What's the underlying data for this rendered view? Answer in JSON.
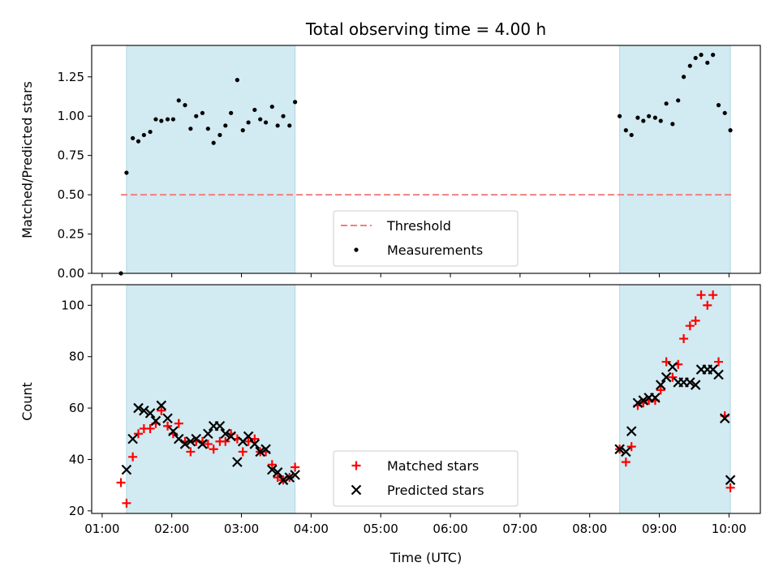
{
  "chart_data": {
    "type": "scatter",
    "title": "Total observing time = 4.00 h",
    "xlabel": "Time (UTC)",
    "x_ticks": [
      "01:00",
      "02:00",
      "03:00",
      "04:00",
      "05:00",
      "06:00",
      "07:00",
      "08:00",
      "09:00",
      "10:00"
    ],
    "x_range_hours": [
      0.85,
      10.45
    ],
    "shaded_intervals": [
      [
        1.35,
        3.77
      ],
      [
        8.43,
        10.02
      ]
    ],
    "shade_color": "#add8e6",
    "panels": [
      {
        "ylabel": "Matched/Predicted stars",
        "ylim": [
          0,
          1.45
        ],
        "y_ticks": [
          "0.00",
          "0.25",
          "0.50",
          "0.75",
          "1.00",
          "1.25"
        ],
        "y_tick_values": [
          0,
          0.25,
          0.5,
          0.75,
          1.0,
          1.25
        ],
        "threshold": {
          "name": "Threshold",
          "value": 0.5,
          "x_range": [
            1.27,
            10.05
          ],
          "color": "#f08080"
        },
        "legend": {
          "placement": "lower-center",
          "entries": [
            "Threshold",
            "Measurements"
          ]
        },
        "series": [
          {
            "name": "Measurements",
            "marker": "dot",
            "color": "#000000",
            "points": [
              [
                1.27,
                0.0
              ],
              [
                1.35,
                0.64
              ],
              [
                1.44,
                0.86
              ],
              [
                1.52,
                0.84
              ],
              [
                1.6,
                0.88
              ],
              [
                1.69,
                0.9
              ],
              [
                1.77,
                0.98
              ],
              [
                1.85,
                0.97
              ],
              [
                1.94,
                0.98
              ],
              [
                2.02,
                0.98
              ],
              [
                2.1,
                1.1
              ],
              [
                2.19,
                1.07
              ],
              [
                2.27,
                0.92
              ],
              [
                2.35,
                1.0
              ],
              [
                2.44,
                1.02
              ],
              [
                2.52,
                0.92
              ],
              [
                2.6,
                0.83
              ],
              [
                2.69,
                0.88
              ],
              [
                2.77,
                0.94
              ],
              [
                2.85,
                1.02
              ],
              [
                2.94,
                1.23
              ],
              [
                3.02,
                0.91
              ],
              [
                3.1,
                0.96
              ],
              [
                3.19,
                1.04
              ],
              [
                3.27,
                0.98
              ],
              [
                3.35,
                0.96
              ],
              [
                3.44,
                1.06
              ],
              [
                3.52,
                0.94
              ],
              [
                3.6,
                1.0
              ],
              [
                3.69,
                0.94
              ],
              [
                3.77,
                1.09
              ],
              [
                8.43,
                1.0
              ],
              [
                8.52,
                0.91
              ],
              [
                8.6,
                0.88
              ],
              [
                8.69,
                0.99
              ],
              [
                8.77,
                0.97
              ],
              [
                8.85,
                1.0
              ],
              [
                8.94,
                0.99
              ],
              [
                9.02,
                0.97
              ],
              [
                9.1,
                1.08
              ],
              [
                9.19,
                0.95
              ],
              [
                9.27,
                1.1
              ],
              [
                9.35,
                1.25
              ],
              [
                9.44,
                1.32
              ],
              [
                9.52,
                1.37
              ],
              [
                9.6,
                1.39
              ],
              [
                9.69,
                1.34
              ],
              [
                9.77,
                1.39
              ],
              [
                9.85,
                1.07
              ],
              [
                9.94,
                1.02
              ],
              [
                10.02,
                0.91
              ]
            ]
          }
        ]
      },
      {
        "ylabel": "Count",
        "ylim": [
          19,
          108
        ],
        "y_ticks": [
          "20",
          "40",
          "60",
          "80",
          "100"
        ],
        "y_tick_values": [
          20,
          40,
          60,
          80,
          100
        ],
        "legend": {
          "placement": "lower-center",
          "entries": [
            "Matched stars",
            "Predicted stars"
          ]
        },
        "series": [
          {
            "name": "Matched stars",
            "marker": "plus",
            "color": "#ff0000",
            "points": [
              [
                1.27,
                31
              ],
              [
                1.35,
                23
              ],
              [
                1.44,
                41
              ],
              [
                1.52,
                50
              ],
              [
                1.6,
                52
              ],
              [
                1.69,
                52
              ],
              [
                1.77,
                54
              ],
              [
                1.85,
                59
              ],
              [
                1.94,
                53
              ],
              [
                2.02,
                50
              ],
              [
                2.1,
                54
              ],
              [
                2.19,
                47
              ],
              [
                2.27,
                43
              ],
              [
                2.35,
                47
              ],
              [
                2.44,
                47
              ],
              [
                2.52,
                46
              ],
              [
                2.6,
                44
              ],
              [
                2.69,
                47
              ],
              [
                2.77,
                47
              ],
              [
                2.85,
                50
              ],
              [
                2.94,
                48
              ],
              [
                3.02,
                43
              ],
              [
                3.1,
                47
              ],
              [
                3.19,
                48
              ],
              [
                3.27,
                43
              ],
              [
                3.35,
                43
              ],
              [
                3.44,
                38
              ],
              [
                3.52,
                33
              ],
              [
                3.6,
                32
              ],
              [
                3.69,
                33
              ],
              [
                3.77,
                37
              ],
              [
                8.43,
                44
              ],
              [
                8.52,
                39
              ],
              [
                8.6,
                45
              ],
              [
                8.69,
                61
              ],
              [
                8.77,
                62
              ],
              [
                8.85,
                63
              ],
              [
                8.94,
                63
              ],
              [
                9.02,
                67
              ],
              [
                9.1,
                78
              ],
              [
                9.19,
                72
              ],
              [
                9.27,
                77
              ],
              [
                9.35,
                87
              ],
              [
                9.44,
                92
              ],
              [
                9.52,
                94
              ],
              [
                9.6,
                104
              ],
              [
                9.69,
                100
              ],
              [
                9.77,
                104
              ],
              [
                9.85,
                78
              ],
              [
                9.94,
                57
              ],
              [
                10.02,
                29
              ]
            ]
          },
          {
            "name": "Predicted stars",
            "marker": "x",
            "color": "#000000",
            "points": [
              [
                1.35,
                36
              ],
              [
                1.44,
                48
              ],
              [
                1.52,
                60
              ],
              [
                1.6,
                59
              ],
              [
                1.69,
                58
              ],
              [
                1.77,
                55
              ],
              [
                1.85,
                61
              ],
              [
                1.94,
                56
              ],
              [
                2.02,
                51
              ],
              [
                2.1,
                48
              ],
              [
                2.19,
                46
              ],
              [
                2.27,
                47
              ],
              [
                2.35,
                48
              ],
              [
                2.44,
                46
              ],
              [
                2.52,
                50
              ],
              [
                2.6,
                53
              ],
              [
                2.69,
                53
              ],
              [
                2.77,
                50
              ],
              [
                2.85,
                49
              ],
              [
                2.94,
                39
              ],
              [
                3.02,
                47
              ],
              [
                3.1,
                49
              ],
              [
                3.19,
                46
              ],
              [
                3.27,
                43
              ],
              [
                3.35,
                44
              ],
              [
                3.44,
                36
              ],
              [
                3.52,
                35
              ],
              [
                3.6,
                32
              ],
              [
                3.69,
                33
              ],
              [
                3.77,
                34
              ],
              [
                8.43,
                44
              ],
              [
                8.52,
                43
              ],
              [
                8.6,
                51
              ],
              [
                8.69,
                62
              ],
              [
                8.77,
                63
              ],
              [
                8.85,
                64
              ],
              [
                8.94,
                64
              ],
              [
                9.02,
                69
              ],
              [
                9.1,
                72
              ],
              [
                9.19,
                76
              ],
              [
                9.27,
                70
              ],
              [
                9.35,
                70
              ],
              [
                9.44,
                70
              ],
              [
                9.52,
                69
              ],
              [
                9.6,
                75
              ],
              [
                9.69,
                75
              ],
              [
                9.77,
                75
              ],
              [
                9.85,
                73
              ],
              [
                9.94,
                56
              ],
              [
                10.02,
                32
              ]
            ]
          }
        ]
      }
    ]
  }
}
